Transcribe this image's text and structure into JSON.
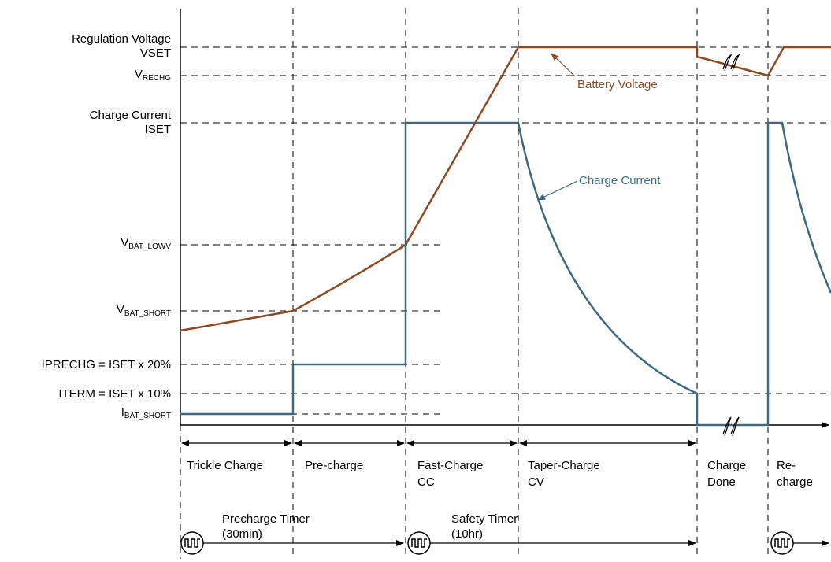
{
  "y_labels": {
    "regulation_voltage": "Regulation Voltage",
    "vset": "VSET",
    "vrechg_main": "V",
    "vrechg_sub": "RECHG",
    "charge_current": "Charge Current",
    "iset": "ISET",
    "vbat_lowv_main": "V",
    "vbat_lowv_sub": "BAT_LOWV",
    "vbat_short_main": "V",
    "vbat_short_sub": "BAT_SHORT",
    "iprechg": "IPRECHG = ISET x 20%",
    "iterm": "ITERM = ISET x 10%",
    "ibat_short_main": "I",
    "ibat_short_sub": "BAT_SHORT"
  },
  "annotations": {
    "battery_voltage": "Battery Voltage",
    "charge_current": "Charge Current"
  },
  "phases": {
    "trickle": "Trickle Charge",
    "precharge": "Pre-charge",
    "fast_1": "Fast-Charge",
    "fast_2": "CC",
    "taper_1": "Taper-Charge",
    "taper_2": "CV",
    "done_1": "Charge",
    "done_2": "Done",
    "rech_1": "Re-",
    "rech_2": "charge"
  },
  "timers": {
    "precharge_1": "Precharge Timer",
    "precharge_2": "(30min)",
    "safety_1": "Safety Timer",
    "safety_2": "(10hr)"
  },
  "colors": {
    "battery_voltage": "#8b4a23",
    "charge_current": "#3d6a82"
  }
}
